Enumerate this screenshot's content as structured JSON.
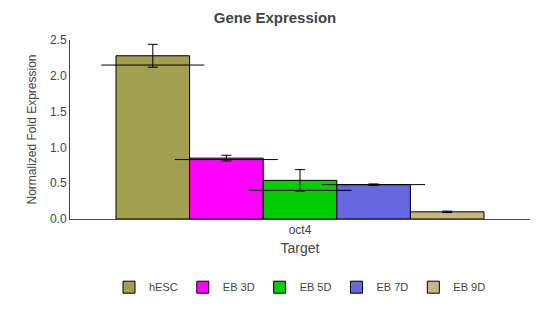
{
  "chart_data": {
    "type": "bar",
    "title": "Gene Expression",
    "xlabel": "Target",
    "ylabel": "Normalized Fold Expression",
    "categories": [
      "oct4"
    ],
    "series": [
      {
        "name": "hESC",
        "color": "#a0a050",
        "values": [
          2.28
        ],
        "errors": [
          0.16
        ],
        "median": [
          2.15
        ]
      },
      {
        "name": "EB 3D",
        "color": "#ff00ff",
        "values": [
          0.85
        ],
        "errors": [
          0.04
        ],
        "median": [
          0.83
        ]
      },
      {
        "name": "EB 5D",
        "color": "#00cc00",
        "values": [
          0.54
        ],
        "errors": [
          0.15
        ],
        "median": [
          0.4
        ]
      },
      {
        "name": "EB 7D",
        "color": "#6666dd",
        "values": [
          0.48
        ],
        "errors": [
          0.01
        ],
        "median": [
          0.48
        ]
      },
      {
        "name": "EB 9D",
        "color": "#c8b880",
        "values": [
          0.1
        ],
        "errors": [
          0.01
        ]
      }
    ],
    "ylim": [
      0.0,
      2.5
    ],
    "yticks": [
      {
        "value": 0,
        "label": "0.0"
      },
      0.5,
      {
        "value": 1,
        "label": "1.0"
      },
      1.5,
      {
        "value": 2,
        "label": "2.0"
      },
      2.5
    ],
    "grid": false,
    "legend": "bottom"
  }
}
